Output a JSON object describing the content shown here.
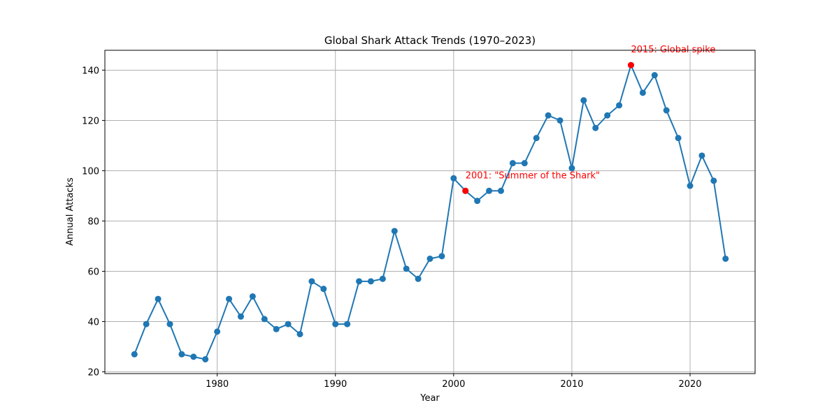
{
  "chart_data": {
    "type": "line",
    "title": "Global Shark Attack Trends (1970–2023)",
    "xlabel": "Year",
    "ylabel": "Annual Attacks",
    "xlim": [
      1970.5,
      2025.5
    ],
    "ylim": [
      19.3,
      147.9
    ],
    "xticks": [
      1980,
      1990,
      2000,
      2010,
      2020
    ],
    "yticks": [
      20,
      40,
      60,
      80,
      100,
      120,
      140
    ],
    "grid": true,
    "series": [
      {
        "x": [
          1973,
          1974,
          1975,
          1976,
          1977,
          1978,
          1979,
          1980,
          1981,
          1982,
          1983,
          1984,
          1985,
          1986,
          1987,
          1988,
          1989,
          1990,
          1991,
          1992,
          1993,
          1994,
          1995,
          1996,
          1997,
          1998,
          1999,
          2000,
          2001,
          2002,
          2003,
          2004,
          2005,
          2006,
          2007,
          2008,
          2009,
          2010,
          2011,
          2012,
          2013,
          2014,
          2015,
          2016,
          2017,
          2018,
          2019,
          2020,
          2021,
          2022,
          2023
        ],
        "values": [
          27,
          39,
          49,
          39,
          27,
          26,
          25,
          36,
          49,
          42,
          50,
          41,
          37,
          39,
          35,
          56,
          53,
          39,
          39,
          56,
          56,
          57,
          76,
          61,
          57,
          65,
          66,
          97,
          92,
          88,
          92,
          92,
          103,
          103,
          113,
          122,
          120,
          101,
          128,
          117,
          122,
          126,
          142,
          131,
          138,
          124,
          113,
          94,
          106,
          96,
          65
        ]
      }
    ],
    "annotations": [
      {
        "x": 2001,
        "y": 92,
        "text": "2001: \"Summer of the Shark\""
      },
      {
        "x": 2015,
        "y": 142,
        "text": "2015: Global spike"
      }
    ],
    "colors": {
      "line": "#1f77b4",
      "highlight": "#ff0000",
      "grid": "#b0b0b0"
    }
  }
}
